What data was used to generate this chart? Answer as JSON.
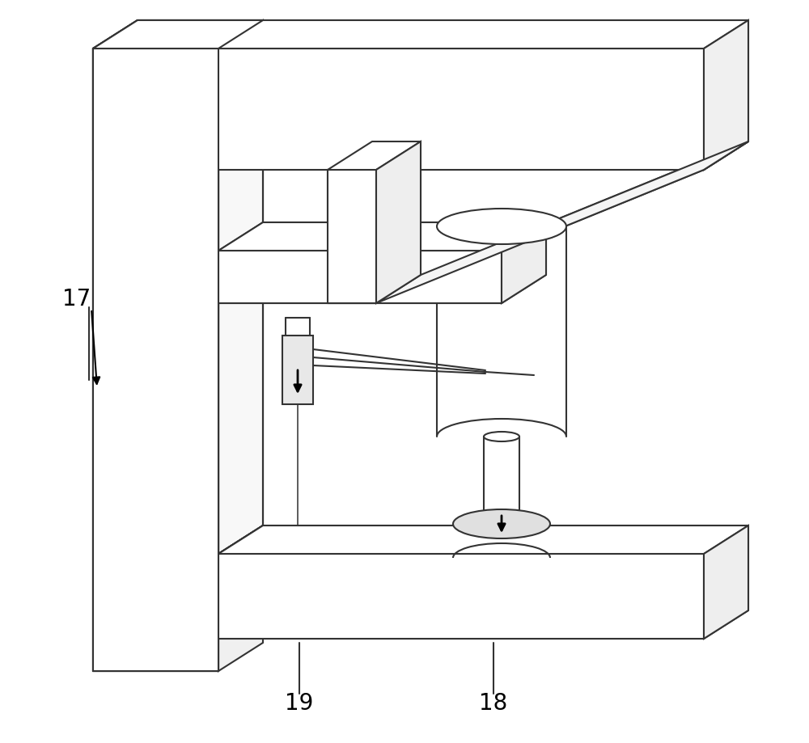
{
  "bg_color": "#ffffff",
  "line_color": "#333333",
  "line_width": 1.5,
  "label_17": "17",
  "label_18": "18",
  "label_19": "19",
  "label_color": "#000000",
  "label_fontsize": 20,
  "fig_w": 10.0,
  "fig_h": 9.19,
  "dpi": 100
}
